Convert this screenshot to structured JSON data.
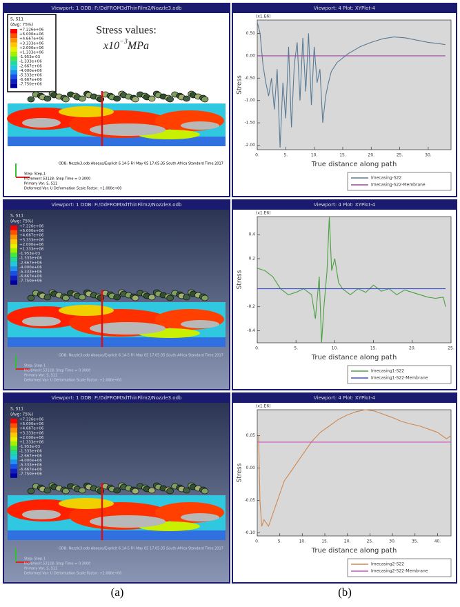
{
  "panels": [
    {
      "contour": {
        "title": "Viewport: 1 ODB: F:/DdFROM3dThinFilm2/Nozzle3.odb",
        "annotation_line1": "Stress values:",
        "annotation_base": "x10",
        "annotation_exponent": "−3",
        "annotation_unit": "MPa",
        "legend_title": "S, S11",
        "legend_subtitle": "(Avg: 75%)",
        "legend_values": [
          "+7.226e+06",
          "+6.000e+06",
          "+4.667e+06",
          "+3.333e+06",
          "+2.000e+06",
          "+1.333e+06",
          "-1.953e-03",
          "-1.333e+06",
          "-2.667e+06",
          "-4.000e+06",
          "-5.333e+06",
          "-6.667e+06",
          "-7.750e+06"
        ],
        "footer": [
          "ODB: Nozzle3.odb   Abaqus/Explicit 6.14-5   Fri May 05 17:05:35 South Africa Standard Time 2017",
          "Step: Step-1",
          "Increment  53128: Step Time =   0.3000",
          "Primary Var: S, S11",
          "Deformed Var: U   Deformation Scale Factor: +1.000e+00"
        ]
      },
      "plot": {
        "title": "Viewport: 4   Plot: XYPlot-4",
        "multiplier": "(x1.E6)",
        "ylabel": "Stress",
        "xlabel": "True distance along path",
        "xlim": [
          0,
          34
        ],
        "ylim": [
          -2.1,
          0.8
        ],
        "xticks": [
          {
            "value": 0,
            "label": "0."
          },
          {
            "value": 5,
            "label": "5."
          },
          {
            "value": 10,
            "label": "10."
          },
          {
            "value": 15,
            "label": "15."
          },
          {
            "value": 20,
            "label": "20."
          },
          {
            "value": 25,
            "label": "25."
          },
          {
            "value": 30,
            "label": "30."
          }
        ],
        "yticks": [
          {
            "value": 0.5,
            "label": "0.50"
          },
          {
            "value": 0,
            "label": "0.00"
          },
          {
            "value": -0.5,
            "label": "-0.50"
          },
          {
            "value": -1,
            "label": "-1.00"
          },
          {
            "value": -1.5,
            "label": "-1.50"
          },
          {
            "value": -2,
            "label": "-2.00"
          }
        ],
        "series": [
          {
            "name": "Imecasing-S22",
            "color": "#5a7a94",
            "x": [
              0,
              0.5,
              1,
              1.5,
              2,
              2.5,
              3,
              3.5,
              4,
              4.5,
              5,
              5.5,
              6,
              6.5,
              7,
              7.5,
              8,
              8.5,
              9,
              9.5,
              10,
              10.5,
              11,
              11.5,
              12,
              12.5,
              13,
              14,
              16,
              18,
              20,
              22,
              24,
              26,
              28,
              30,
              32,
              33
            ],
            "values": [
              0.75,
              0.5,
              -0.2,
              -0.6,
              -0.9,
              -0.5,
              -1.2,
              -0.3,
              -2.05,
              -0.6,
              -1.4,
              0.2,
              -1.6,
              -0.2,
              0.3,
              -1.0,
              0.4,
              -0.8,
              0.5,
              -1.1,
              0.2,
              -0.6,
              -0.3,
              -1.5,
              -0.9,
              -0.6,
              -0.35,
              -0.15,
              0.05,
              0.2,
              0.3,
              0.38,
              0.42,
              0.4,
              0.35,
              0.3,
              0.27,
              0.25
            ]
          },
          {
            "name": "Imecasing-S22-Membrane",
            "color": "#a040a0",
            "x": [
              0,
              33
            ],
            "values": [
              0,
              0
            ]
          }
        ]
      }
    },
    {
      "contour": {
        "title": "Viewport: 1   ODB: F:/DdFROM3dThinFilm2/Nozzle3.odb",
        "legend_title": "S, S11",
        "legend_subtitle": "(Avg: 75%)",
        "legend_values": [
          "+7.226e+06",
          "+6.000e+06",
          "+4.667e+06",
          "+3.333e+06",
          "+2.000e+06",
          "+1.333e+06",
          "-1.953e-03",
          "-1.333e+06",
          "-2.667e+06",
          "-4.000e+06",
          "-5.333e+06",
          "-6.667e+06",
          "-7.750e+06"
        ],
        "footer": [
          "ODB: Nozzle3.odb   Abaqus/Explicit 6.14-5   Fri May 05 17:05:35 South Africa Standard Time 2017",
          "Step: Step-1",
          "Increment  53128: Step Time =   0.3000",
          "Primary Var: S, S11",
          "Deformed Var: U   Deformation Scale Factor: +1.000e+00"
        ]
      },
      "plot": {
        "title": "Viewport: 4   Plot: XYPlot-4",
        "multiplier": "(x1.E6)",
        "ylabel": "Stress",
        "xlabel": "True distance along path",
        "xlim": [
          0,
          25
        ],
        "ylim": [
          -0.5,
          0.55
        ],
        "xticks": [
          {
            "value": 0,
            "label": "0."
          },
          {
            "value": 5,
            "label": "5."
          },
          {
            "value": 10,
            "label": "10."
          },
          {
            "value": 15,
            "label": "15."
          },
          {
            "value": 20,
            "label": "20."
          },
          {
            "value": 25,
            "label": "25."
          }
        ],
        "yticks": [
          0.4,
          0.2,
          -0.2,
          -0.4
        ],
        "series": [
          {
            "name": "Imecasing1-S22",
            "color": "#4aa040",
            "x": [
              0,
              1,
              2,
              3,
              4,
              5,
              6,
              7,
              7.5,
              8,
              8.3,
              8.6,
              9,
              9.3,
              9.6,
              10,
              10.5,
              11,
              12,
              13,
              14,
              15,
              16,
              17,
              18,
              19,
              20,
              21,
              22,
              23,
              24,
              24.3
            ],
            "values": [
              0.12,
              0.1,
              0.05,
              -0.05,
              -0.1,
              -0.08,
              -0.05,
              -0.1,
              -0.3,
              0.05,
              -0.5,
              -0.2,
              0.1,
              0.55,
              0.1,
              0.2,
              0.0,
              -0.05,
              -0.1,
              -0.05,
              -0.08,
              -0.02,
              -0.07,
              -0.05,
              -0.1,
              -0.06,
              -0.08,
              -0.1,
              -0.12,
              -0.13,
              -0.12,
              -0.2
            ]
          },
          {
            "name": "Imecasing1-S22-Membrane",
            "color": "#3a50d8",
            "x": [
              0,
              24.3
            ],
            "values": [
              -0.05,
              -0.05
            ]
          }
        ]
      }
    },
    {
      "contour": {
        "title": "Viewport: 1   ODB: F:/DdFROM3dThinFilm2/Nozzle3.odb",
        "legend_title": "S, S11",
        "legend_subtitle": "(Avg: 75%)",
        "legend_values": [
          "+7.226e+06",
          "+6.000e+06",
          "+4.667e+06",
          "+3.333e+06",
          "+2.000e+06",
          "+1.333e+06",
          "-1.953e-03",
          "-1.333e+06",
          "-2.667e+06",
          "-4.000e+06",
          "-5.333e+06",
          "-6.667e+06",
          "-7.750e+06"
        ],
        "footer": [
          "ODB: Nozzle3.odb   Abaqus/Explicit 6.14-5   Fri May 05 17:05:35 South Africa Standard Time 2017",
          "Step: Step-1",
          "Increment  53128: Step Time =   0.3000",
          "Primary Var: S, S11",
          "Deformed Var: U   Deformation Scale Factor: +1.000e+00"
        ]
      },
      "plot": {
        "title": "Viewport: 4   Plot: XYPlot-4",
        "multiplier": "(x1.E6)",
        "ylabel": "Stress",
        "xlabel": "True distance along path",
        "xlim": [
          0,
          43
        ],
        "ylim": [
          -0.105,
          0.09
        ],
        "xticks": [
          {
            "value": 0,
            "label": "0."
          },
          {
            "value": 5,
            "label": "5."
          },
          {
            "value": 10,
            "label": "10."
          },
          {
            "value": 15,
            "label": "15."
          },
          {
            "value": 20,
            "label": "20."
          },
          {
            "value": 25,
            "label": "25."
          },
          {
            "value": 30,
            "label": "30."
          },
          {
            "value": 35,
            "label": "35."
          },
          {
            "value": 40,
            "label": "40."
          }
        ],
        "yticks": [
          0.05,
          {
            "value": 0,
            "label": "0.00"
          },
          -0.05,
          {
            "value": -0.1,
            "label": "-0.10"
          }
        ],
        "series": [
          {
            "name": "Imecasing2-S22",
            "color": "#d08850",
            "x": [
              0.3,
              0.6,
              1,
              1.5,
              2,
              2.5,
              3,
              4,
              5,
              6,
              8,
              10,
              12,
              14,
              16,
              18,
              20,
              22,
              24,
              26,
              28,
              30,
              32,
              34,
              36,
              38,
              40,
              41,
              42,
              43
            ],
            "values": [
              0.05,
              -0.05,
              -0.09,
              -0.08,
              -0.085,
              -0.09,
              -0.08,
              -0.06,
              -0.04,
              -0.02,
              0.0,
              0.02,
              0.04,
              0.055,
              0.065,
              0.075,
              0.082,
              0.087,
              0.09,
              0.088,
              0.083,
              0.078,
              0.072,
              0.068,
              0.065,
              0.06,
              0.055,
              0.05,
              0.045,
              0.05
            ]
          },
          {
            "name": "Imecasing2-S22-Membrane",
            "color": "#d050c0",
            "x": [
              0,
              43
            ],
            "values": [
              0.04,
              0.04
            ]
          }
        ]
      }
    }
  ],
  "captions": [
    "(a)",
    "(b)"
  ]
}
